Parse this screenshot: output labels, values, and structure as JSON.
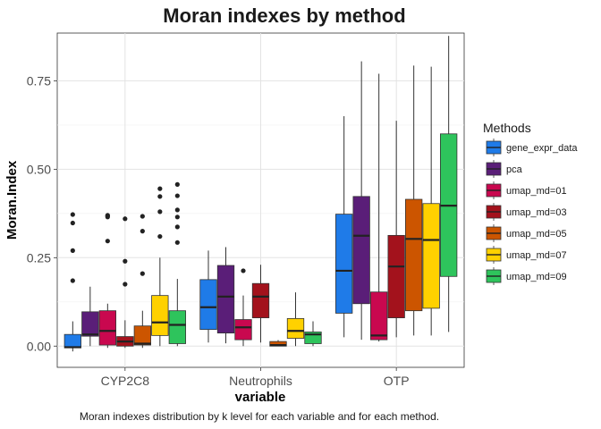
{
  "chart_data": {
    "type": "boxplot",
    "title": "Moran indexes by method",
    "xlabel": "variable",
    "ylabel": "Moran.Index",
    "caption": "Moran indexes distribution by k level for each variable and for each method.",
    "categories": [
      "CYP2C8",
      "Neutrophils",
      "OTP"
    ],
    "y_ticks": [
      "0.00",
      "0.25",
      "0.50",
      "0.75"
    ],
    "y_tick_values": [
      0,
      0.25,
      0.5,
      0.75
    ],
    "ylim": [
      -0.06,
      0.885
    ],
    "grid": true,
    "legend": {
      "title": "Methods",
      "placement": "right"
    },
    "series": [
      {
        "name": "gene_expr_data",
        "color": "#1f7be8",
        "boxes": [
          {
            "min": -0.015,
            "q1": -0.005,
            "median": -0.003,
            "q3": 0.033,
            "max": 0.07,
            "outliers": [
              0.185,
              0.27,
              0.348,
              0.372
            ]
          },
          {
            "min": 0.01,
            "q1": 0.047,
            "median": 0.11,
            "q3": 0.188,
            "max": 0.27,
            "outliers": []
          },
          {
            "min": 0.025,
            "q1": 0.093,
            "median": 0.213,
            "q3": 0.373,
            "max": 0.65,
            "outliers": []
          }
        ]
      },
      {
        "name": "pca",
        "color": "#5a1e78",
        "boxes": [
          {
            "min": 0.0,
            "q1": 0.028,
            "median": 0.033,
            "q3": 0.097,
            "max": 0.168,
            "outliers": []
          },
          {
            "min": 0.008,
            "q1": 0.037,
            "median": 0.14,
            "q3": 0.228,
            "max": 0.28,
            "outliers": []
          },
          {
            "min": 0.018,
            "q1": 0.12,
            "median": 0.312,
            "q3": 0.423,
            "max": 0.805,
            "outliers": []
          }
        ]
      },
      {
        "name": "umap_md=01",
        "color": "#c9084f",
        "boxes": [
          {
            "min": -0.005,
            "q1": 0.003,
            "median": 0.043,
            "q3": 0.1,
            "max": 0.12,
            "outliers": [
              0.297,
              0.365,
              0.368,
              0.37
            ]
          },
          {
            "min": 0.0,
            "q1": 0.018,
            "median": 0.053,
            "q3": 0.075,
            "max": 0.143,
            "outliers": [
              0.213
            ]
          },
          {
            "min": 0.013,
            "q1": 0.018,
            "median": 0.03,
            "q3": 0.153,
            "max": 0.77,
            "outliers": []
          }
        ]
      },
      {
        "name": "umap_md=03",
        "color": "#a3121c",
        "boxes": [
          {
            "min": -0.005,
            "q1": 0.0,
            "median": 0.013,
            "q3": 0.027,
            "max": 0.073,
            "outliers": [
              0.175,
              0.24,
              0.36
            ]
          },
          {
            "min": 0.01,
            "q1": 0.08,
            "median": 0.14,
            "q3": 0.177,
            "max": 0.23,
            "outliers": []
          },
          {
            "min": 0.025,
            "q1": 0.08,
            "median": 0.225,
            "q3": 0.313,
            "max": 0.637,
            "outliers": []
          }
        ]
      },
      {
        "name": "umap_md=05",
        "color": "#cc5500",
        "boxes": [
          {
            "min": -0.005,
            "q1": 0.003,
            "median": 0.007,
            "q3": 0.057,
            "max": 0.1,
            "outliers": [
              0.205,
              0.325,
              0.367
            ]
          },
          {
            "min": 0.0,
            "q1": 0.0,
            "median": 0.003,
            "q3": 0.013,
            "max": 0.017,
            "outliers": []
          },
          {
            "min": 0.03,
            "q1": 0.1,
            "median": 0.303,
            "q3": 0.415,
            "max": 0.793,
            "outliers": []
          }
        ]
      },
      {
        "name": "umap_md=07",
        "color": "#ffd100",
        "boxes": [
          {
            "min": 0.0,
            "q1": 0.03,
            "median": 0.067,
            "q3": 0.143,
            "max": 0.25,
            "outliers": [
              0.31,
              0.38,
              0.423,
              0.445
            ]
          },
          {
            "min": 0.0,
            "q1": 0.022,
            "median": 0.043,
            "q3": 0.078,
            "max": 0.152,
            "outliers": []
          },
          {
            "min": 0.03,
            "q1": 0.107,
            "median": 0.3,
            "q3": 0.403,
            "max": 0.79,
            "outliers": []
          }
        ]
      },
      {
        "name": "umap_md=09",
        "color": "#2ec45c",
        "boxes": [
          {
            "min": 0.0,
            "q1": 0.007,
            "median": 0.06,
            "q3": 0.1,
            "max": 0.19,
            "outliers": [
              0.293,
              0.337,
              0.365,
              0.385,
              0.425,
              0.457
            ]
          },
          {
            "min": 0.0,
            "q1": 0.007,
            "median": 0.033,
            "q3": 0.04,
            "max": 0.07,
            "outliers": []
          },
          {
            "min": 0.04,
            "q1": 0.197,
            "median": 0.397,
            "q3": 0.6,
            "max": 0.877,
            "outliers": []
          }
        ]
      }
    ]
  }
}
